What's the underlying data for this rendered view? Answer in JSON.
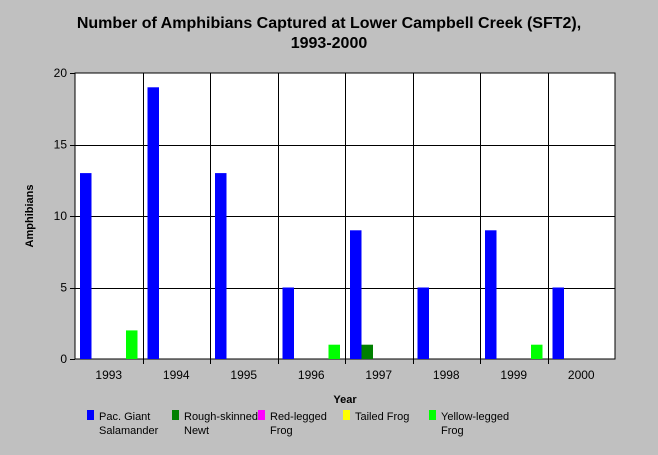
{
  "chart_data": {
    "type": "bar",
    "title": [
      "Number of Amphibians Captured at Lower Campbell Creek (SFT2),",
      "1993-2000"
    ],
    "xlabel": "Year",
    "ylabel": "Amphibians",
    "ylim": [
      0,
      20
    ],
    "yticks": [
      0,
      5,
      10,
      15,
      20
    ],
    "categories": [
      "1993",
      "1994",
      "1995",
      "1996",
      "1997",
      "1998",
      "1999",
      "2000"
    ],
    "grid": true,
    "legend_position": "bottom",
    "series": [
      {
        "name": "Pac. Giant Salamander",
        "legend_lines": [
          "Pac. Giant",
          "Salamander"
        ],
        "color": "#0000ff",
        "values": [
          13,
          19,
          13,
          5,
          9,
          5,
          9,
          5
        ]
      },
      {
        "name": "Rough-skinned Newt",
        "legend_lines": [
          "Rough-skinned",
          "Newt"
        ],
        "color": "#008000",
        "values": [
          0,
          0,
          0,
          0,
          1,
          0,
          0,
          0
        ]
      },
      {
        "name": "Red-legged Frog",
        "legend_lines": [
          "Red-legged",
          "Frog"
        ],
        "color": "#ff00ff",
        "values": [
          0,
          0,
          0,
          0,
          0,
          0,
          0,
          0
        ]
      },
      {
        "name": "Tailed Frog",
        "legend_lines": [
          "Tailed Frog"
        ],
        "color": "#ffff00",
        "values": [
          0,
          0,
          0,
          0,
          0,
          0,
          0,
          0
        ]
      },
      {
        "name": "Yellow-legged Frog",
        "legend_lines": [
          "Yellow-legged",
          "Frog"
        ],
        "color": "#00ff00",
        "values": [
          2,
          0,
          0,
          1,
          0,
          0,
          1,
          0
        ]
      }
    ]
  }
}
